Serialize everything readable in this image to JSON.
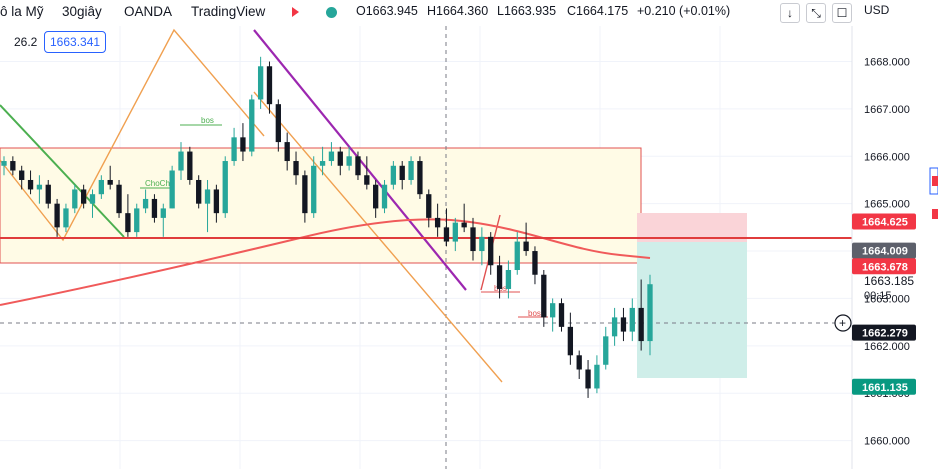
{
  "header": {
    "symbol_partial": "ô la Mỹ",
    "interval": "30giây",
    "broker": "OANDA",
    "platform": "TradingView",
    "open": "O1663.945",
    "high": "H1664.360",
    "low": "L1663.935",
    "close": "C1664.175",
    "change": "+0.210 (+0.01%)",
    "indicator_value": "26.2",
    "indicator_box": "1663.341",
    "currency": "USD"
  },
  "toolbar": {
    "down_icon": "↓",
    "expand_icon": "⤡",
    "square_icon": "☐"
  },
  "colors": {
    "up": "#26a69a",
    "down": "#131722",
    "ma": "#f05a5a",
    "hline": "#e03c3c",
    "wedge": "#9c27b0",
    "channel": "#f0a050",
    "zone_fill": "#fffbe6",
    "zone_border": "#e05050",
    "tp_fill": "#cfeee9",
    "sl_fill": "#fad4d8"
  },
  "chart_data": {
    "type": "candlestick",
    "y_axis": {
      "ticks": [
        1660,
        1661,
        1662,
        1663,
        1664,
        1665,
        1666,
        1667,
        1668
      ],
      "tick_labels": [
        "1660.000",
        "1661.000",
        "1662.000",
        "1663.000",
        "1664.000",
        "1665.000",
        "1666.000",
        "1667.000",
        "1668.000"
      ]
    },
    "ylim": [
      1659.4,
      1668.75
    ],
    "price_labels": [
      {
        "value": 1664.625,
        "text": "1664.625",
        "color": "#f23645"
      },
      {
        "value": 1664.009,
        "text": "1664.009",
        "color": "#5d606b"
      },
      {
        "value": 1663.678,
        "text": "1663.678",
        "color": "#f23645"
      },
      {
        "value": 1662.279,
        "text": "1662.279",
        "color": "#131722"
      },
      {
        "value": 1661.135,
        "text": "1661.135",
        "color": "#089981"
      }
    ],
    "current_price": "1663.185",
    "countdown": "00:15",
    "horizontal_level": 1664.009,
    "zone": {
      "top": 1666.0,
      "bottom": 1663.678
    },
    "annotations": [
      "bos",
      "ChoCh",
      "bos",
      "bos"
    ],
    "candles": [
      [
        1665.8,
        1666.0,
        1665.6,
        1665.9
      ],
      [
        1665.9,
        1666.0,
        1665.6,
        1665.7
      ],
      [
        1665.7,
        1665.8,
        1665.3,
        1665.5
      ],
      [
        1665.5,
        1665.7,
        1665.2,
        1665.3
      ],
      [
        1665.3,
        1665.6,
        1665.0,
        1665.4
      ],
      [
        1665.4,
        1665.5,
        1664.9,
        1665.0
      ],
      [
        1665.0,
        1665.1,
        1664.3,
        1664.5
      ],
      [
        1664.5,
        1665.0,
        1664.4,
        1664.9
      ],
      [
        1664.9,
        1665.4,
        1664.8,
        1665.3
      ],
      [
        1665.3,
        1665.4,
        1664.9,
        1665.0
      ],
      [
        1665.0,
        1665.3,
        1664.7,
        1665.2
      ],
      [
        1665.2,
        1665.6,
        1665.1,
        1665.5
      ],
      [
        1665.5,
        1665.8,
        1665.3,
        1665.4
      ],
      [
        1665.4,
        1665.5,
        1664.7,
        1664.8
      ],
      [
        1664.8,
        1665.2,
        1664.3,
        1664.4
      ],
      [
        1664.4,
        1665.0,
        1664.3,
        1664.9
      ],
      [
        1664.9,
        1665.3,
        1664.8,
        1665.1
      ],
      [
        1665.1,
        1665.2,
        1664.6,
        1664.7
      ],
      [
        1664.7,
        1665.0,
        1664.3,
        1664.9
      ],
      [
        1664.9,
        1665.8,
        1664.9,
        1665.7
      ],
      [
        1665.7,
        1666.3,
        1665.5,
        1666.1
      ],
      [
        1666.1,
        1666.2,
        1665.4,
        1665.5
      ],
      [
        1665.5,
        1665.6,
        1664.9,
        1665.0
      ],
      [
        1665.0,
        1665.5,
        1664.4,
        1665.3
      ],
      [
        1665.3,
        1665.4,
        1664.6,
        1664.8
      ],
      [
        1664.8,
        1666.0,
        1664.7,
        1665.9
      ],
      [
        1665.9,
        1666.6,
        1665.8,
        1666.4
      ],
      [
        1666.4,
        1666.7,
        1665.9,
        1666.1
      ],
      [
        1666.1,
        1667.3,
        1666.0,
        1667.2
      ],
      [
        1667.2,
        1668.1,
        1667.0,
        1667.9
      ],
      [
        1667.9,
        1668.0,
        1666.9,
        1667.1
      ],
      [
        1667.1,
        1667.2,
        1666.1,
        1666.3
      ],
      [
        1666.3,
        1666.5,
        1665.7,
        1665.9
      ],
      [
        1665.9,
        1666.1,
        1665.4,
        1665.6
      ],
      [
        1665.6,
        1665.7,
        1664.6,
        1664.8
      ],
      [
        1664.8,
        1666.0,
        1664.7,
        1665.8
      ],
      [
        1665.8,
        1666.2,
        1665.6,
        1665.9
      ],
      [
        1665.9,
        1666.3,
        1665.8,
        1666.1
      ],
      [
        1666.1,
        1666.2,
        1665.6,
        1665.8
      ],
      [
        1665.8,
        1666.2,
        1665.7,
        1666.0
      ],
      [
        1666.0,
        1666.1,
        1665.5,
        1665.6
      ],
      [
        1665.6,
        1666.0,
        1665.3,
        1665.4
      ],
      [
        1665.4,
        1665.5,
        1664.7,
        1664.9
      ],
      [
        1664.9,
        1665.5,
        1664.8,
        1665.4
      ],
      [
        1665.4,
        1665.9,
        1665.3,
        1665.8
      ],
      [
        1665.8,
        1665.9,
        1665.3,
        1665.5
      ],
      [
        1665.5,
        1666.0,
        1665.4,
        1665.9
      ],
      [
        1665.9,
        1666.0,
        1665.1,
        1665.2
      ],
      [
        1665.2,
        1665.3,
        1664.5,
        1664.7
      ],
      [
        1664.7,
        1665.0,
        1664.3,
        1664.5
      ],
      [
        1664.5,
        1664.9,
        1664.1,
        1664.2
      ],
      [
        1664.2,
        1664.7,
        1664.0,
        1664.6
      ],
      [
        1664.6,
        1665.0,
        1664.4,
        1664.5
      ],
      [
        1664.5,
        1664.7,
        1663.8,
        1664.0
      ],
      [
        1664.0,
        1664.5,
        1663.7,
        1664.3
      ],
      [
        1664.3,
        1664.4,
        1663.5,
        1663.7
      ],
      [
        1663.7,
        1663.9,
        1663.0,
        1663.2
      ],
      [
        1663.2,
        1663.8,
        1663.0,
        1663.6
      ],
      [
        1663.6,
        1664.4,
        1663.5,
        1664.2
      ],
      [
        1664.2,
        1664.6,
        1663.9,
        1664.0
      ],
      [
        1664.0,
        1664.1,
        1663.3,
        1663.5
      ],
      [
        1663.5,
        1663.6,
        1662.4,
        1662.6
      ],
      [
        1662.6,
        1663.0,
        1662.3,
        1662.9
      ],
      [
        1662.9,
        1663.0,
        1662.3,
        1662.4
      ],
      [
        1662.4,
        1662.7,
        1661.6,
        1661.8
      ],
      [
        1661.8,
        1661.9,
        1661.3,
        1661.5
      ],
      [
        1661.5,
        1661.7,
        1660.9,
        1661.1
      ],
      [
        1661.1,
        1661.8,
        1661.0,
        1661.6
      ],
      [
        1661.6,
        1662.4,
        1661.5,
        1662.2
      ],
      [
        1662.2,
        1662.8,
        1662.0,
        1662.6
      ],
      [
        1662.6,
        1662.8,
        1662.1,
        1662.3
      ],
      [
        1662.3,
        1663.0,
        1662.1,
        1662.8
      ],
      [
        1662.8,
        1663.4,
        1661.9,
        1662.1
      ],
      [
        1662.1,
        1663.5,
        1661.8,
        1663.3
      ]
    ]
  }
}
